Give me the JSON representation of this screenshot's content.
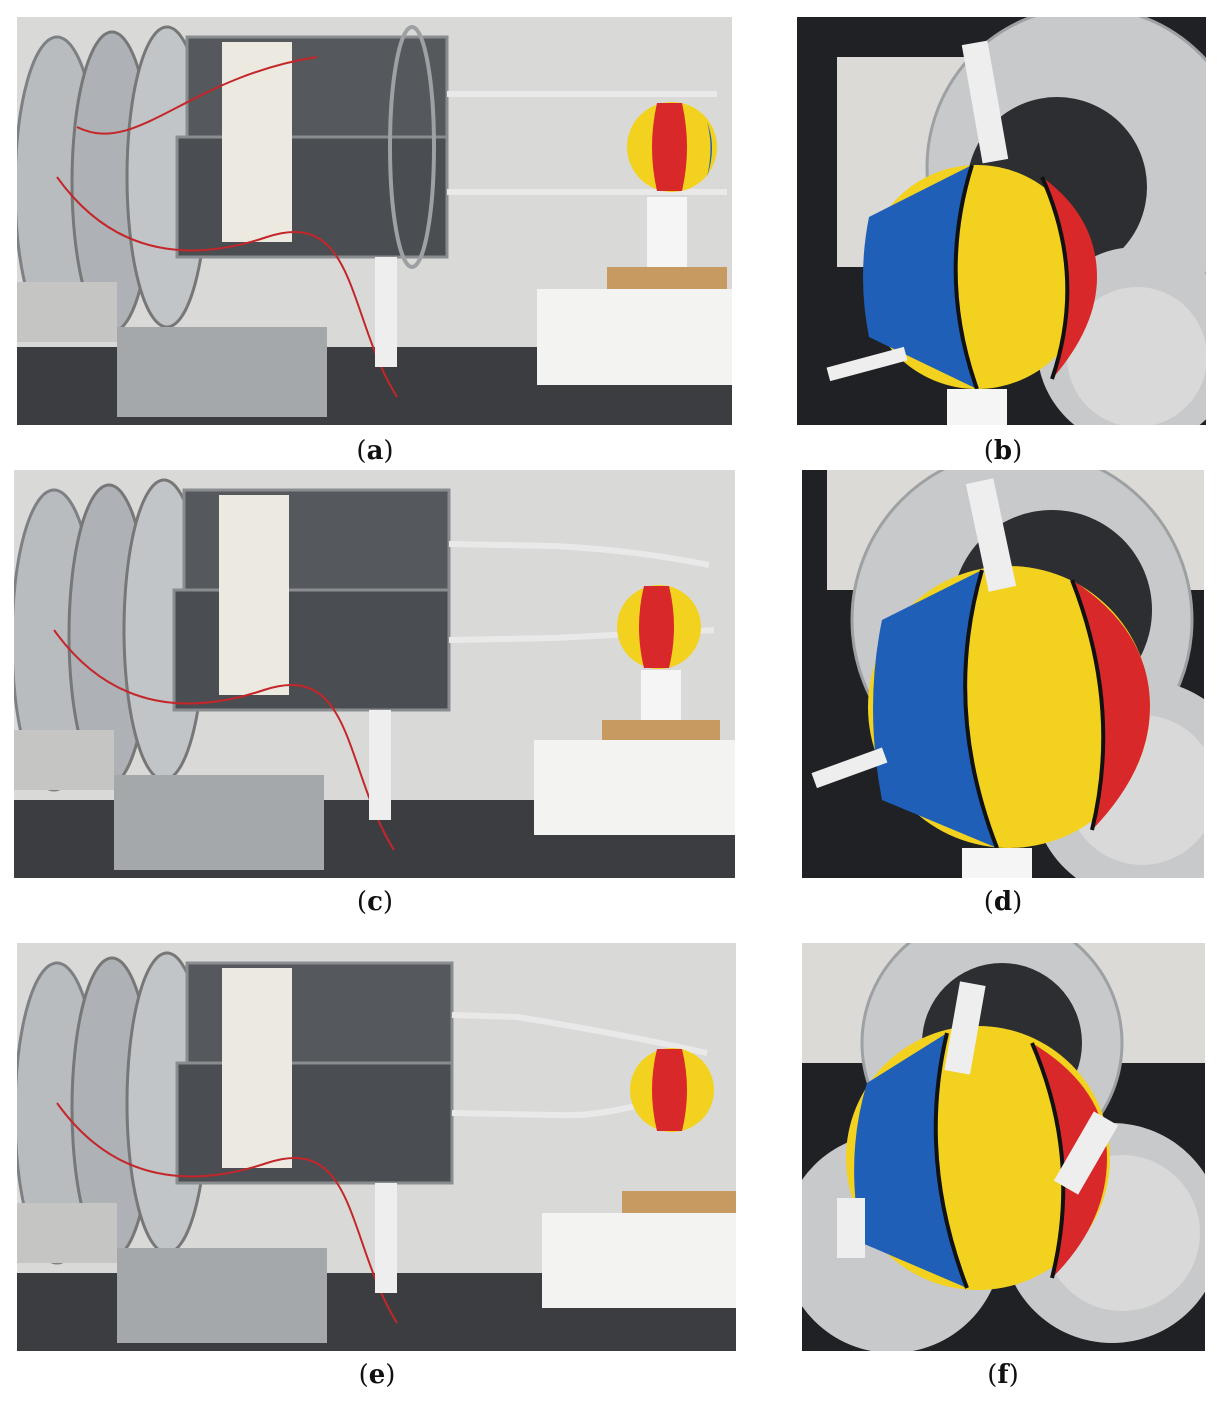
{
  "panels": [
    {
      "id": "a",
      "caption_open": "(",
      "caption_letter": "a",
      "caption_close": ")"
    },
    {
      "id": "b",
      "caption_open": "(",
      "caption_letter": "b",
      "caption_close": ")"
    },
    {
      "id": "c",
      "caption_open": "(",
      "caption_letter": "c",
      "caption_close": ")"
    },
    {
      "id": "d",
      "caption_open": "(",
      "caption_letter": "d",
      "caption_close": ")"
    },
    {
      "id": "e",
      "caption_open": "(",
      "caption_letter": "e",
      "caption_close": ")"
    },
    {
      "id": "f",
      "caption_open": "(",
      "caption_letter": "f",
      "caption_close": ")"
    }
  ],
  "colors": {
    "wall": "#d9dad7",
    "table": "#3b3d40",
    "metal": "#b9bcbf",
    "ball_blue": "#1f5fb8",
    "ball_yellow": "#f2d21f",
    "ball_red": "#d8282a",
    "foam": "#f3f3f1",
    "box": "#c79a62",
    "dark_bg": "#1f2124"
  }
}
